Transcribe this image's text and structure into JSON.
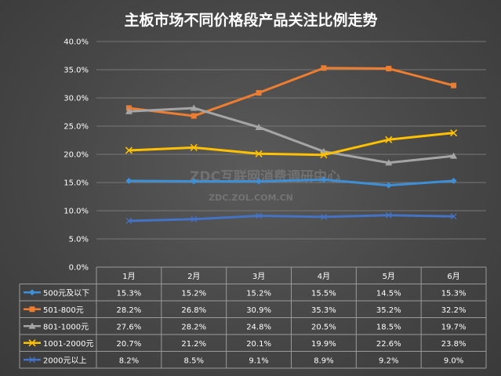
{
  "chart_data": {
    "type": "line",
    "title": "主板市场不同价格段产品关注比例走势",
    "categories": [
      "1月",
      "2月",
      "3月",
      "4月",
      "5月",
      "6月"
    ],
    "ylim": [
      0,
      40
    ],
    "yticks": [
      "0.0%",
      "5.0%",
      "10.0%",
      "15.0%",
      "20.0%",
      "25.0%",
      "30.0%",
      "35.0%",
      "40.0%"
    ],
    "grid": true,
    "legend": "data-table",
    "series": [
      {
        "name": "500元及以下",
        "color": "#3f8fd6",
        "marker": "diamond",
        "values": [
          15.3,
          15.2,
          15.2,
          15.5,
          14.5,
          15.3
        ],
        "labels": [
          "15.3%",
          "15.2%",
          "15.2%",
          "15.5%",
          "14.5%",
          "15.3%"
        ]
      },
      {
        "name": "501-800元",
        "color": "#ed7d31",
        "marker": "square",
        "values": [
          28.2,
          26.8,
          30.9,
          35.3,
          35.2,
          32.2
        ],
        "labels": [
          "28.2%",
          "26.8%",
          "30.9%",
          "35.3%",
          "35.2%",
          "32.2%"
        ]
      },
      {
        "name": "801-1000元",
        "color": "#a5a5a5",
        "marker": "triangle",
        "values": [
          27.6,
          28.2,
          24.8,
          20.5,
          18.5,
          19.7
        ],
        "labels": [
          "27.6%",
          "28.2%",
          "24.8%",
          "20.5%",
          "18.5%",
          "19.7%"
        ]
      },
      {
        "name": "1001-2000元",
        "color": "#ffc000",
        "marker": "x",
        "values": [
          20.7,
          21.2,
          20.1,
          19.9,
          22.6,
          23.8
        ],
        "labels": [
          "20.7%",
          "21.2%",
          "20.1%",
          "19.9%",
          "22.6%",
          "23.8%"
        ]
      },
      {
        "name": "2000元以上",
        "color": "#4472c4",
        "marker": "cross",
        "values": [
          8.2,
          8.5,
          9.1,
          8.9,
          9.2,
          9.0
        ],
        "labels": [
          "8.2%",
          "8.5%",
          "9.1%",
          "8.9%",
          "9.2%",
          "9.0%"
        ]
      }
    ]
  },
  "watermark": {
    "main": "ZDC互联网消费调研中心",
    "sub": "ZDC.ZOL.COM.CN"
  }
}
